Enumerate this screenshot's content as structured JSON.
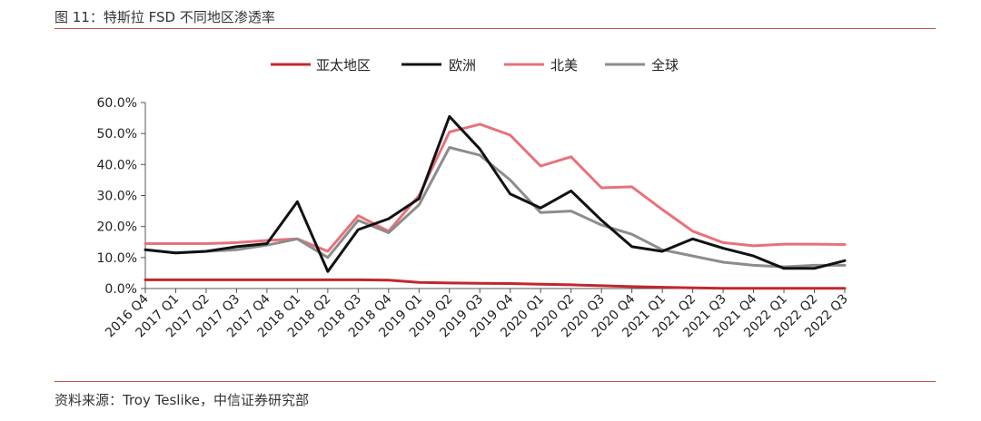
{
  "figure": {
    "title": "图 11：特斯拉 FSD 不同地区渗透率",
    "source": "资料来源：Troy Teslike，中信证券研究部"
  },
  "chart_data": {
    "type": "line",
    "title": "",
    "xlabel": "",
    "ylabel": "",
    "ylim": [
      0,
      60
    ],
    "yticks": [
      "0.0%",
      "10.0%",
      "20.0%",
      "30.0%",
      "40.0%",
      "50.0%",
      "60.0%"
    ],
    "grid": false,
    "legend_position": "top",
    "categories": [
      "2016 Q4",
      "2017 Q1",
      "2017 Q2",
      "2017 Q3",
      "2017 Q4",
      "2018 Q1",
      "2018 Q2",
      "2018 Q3",
      "2018 Q4",
      "2019 Q1",
      "2019 Q2",
      "2019 Q3",
      "2019 Q4",
      "2020 Q1",
      "2020 Q2",
      "2020 Q3",
      "2020 Q4",
      "2021 Q1",
      "2021 Q2",
      "2021 Q3",
      "2021 Q4",
      "2022 Q1",
      "2022 Q2",
      "2022 Q3"
    ],
    "series": [
      {
        "name": "亚太地区",
        "color": "#c0282d",
        "values": [
          2.8,
          2.8,
          2.8,
          2.8,
          2.8,
          2.8,
          2.8,
          2.8,
          2.7,
          2.0,
          1.8,
          1.7,
          1.6,
          1.4,
          1.2,
          0.9,
          0.6,
          0.4,
          0.2,
          0.1,
          0.1,
          0.1,
          0.1,
          0.1
        ]
      },
      {
        "name": "欧洲",
        "color": "#111111",
        "values": [
          12.5,
          11.5,
          12.0,
          13.5,
          14.5,
          28.0,
          5.5,
          19.0,
          22.5,
          29.0,
          55.5,
          45.0,
          30.5,
          26.0,
          31.5,
          22.0,
          13.5,
          12.0,
          16.0,
          13.0,
          10.5,
          6.5,
          6.5,
          9.0
        ]
      },
      {
        "name": "北美",
        "color": "#e8717a",
        "values": [
          14.5,
          14.5,
          14.5,
          14.8,
          15.5,
          16.0,
          12.0,
          23.5,
          18.5,
          30.0,
          50.5,
          53.0,
          49.5,
          39.5,
          42.5,
          32.5,
          32.8,
          25.5,
          18.5,
          14.8,
          13.8,
          14.3,
          14.3,
          14.2
        ]
      },
      {
        "name": "全球",
        "color": "#8c8c8c",
        "values": [
          12.5,
          11.5,
          12.0,
          12.5,
          14.0,
          16.0,
          10.0,
          22.0,
          18.0,
          27.0,
          45.5,
          43.0,
          35.0,
          24.5,
          25.0,
          20.5,
          17.5,
          12.5,
          10.5,
          8.5,
          7.5,
          7.0,
          7.5,
          7.5
        ]
      }
    ]
  }
}
